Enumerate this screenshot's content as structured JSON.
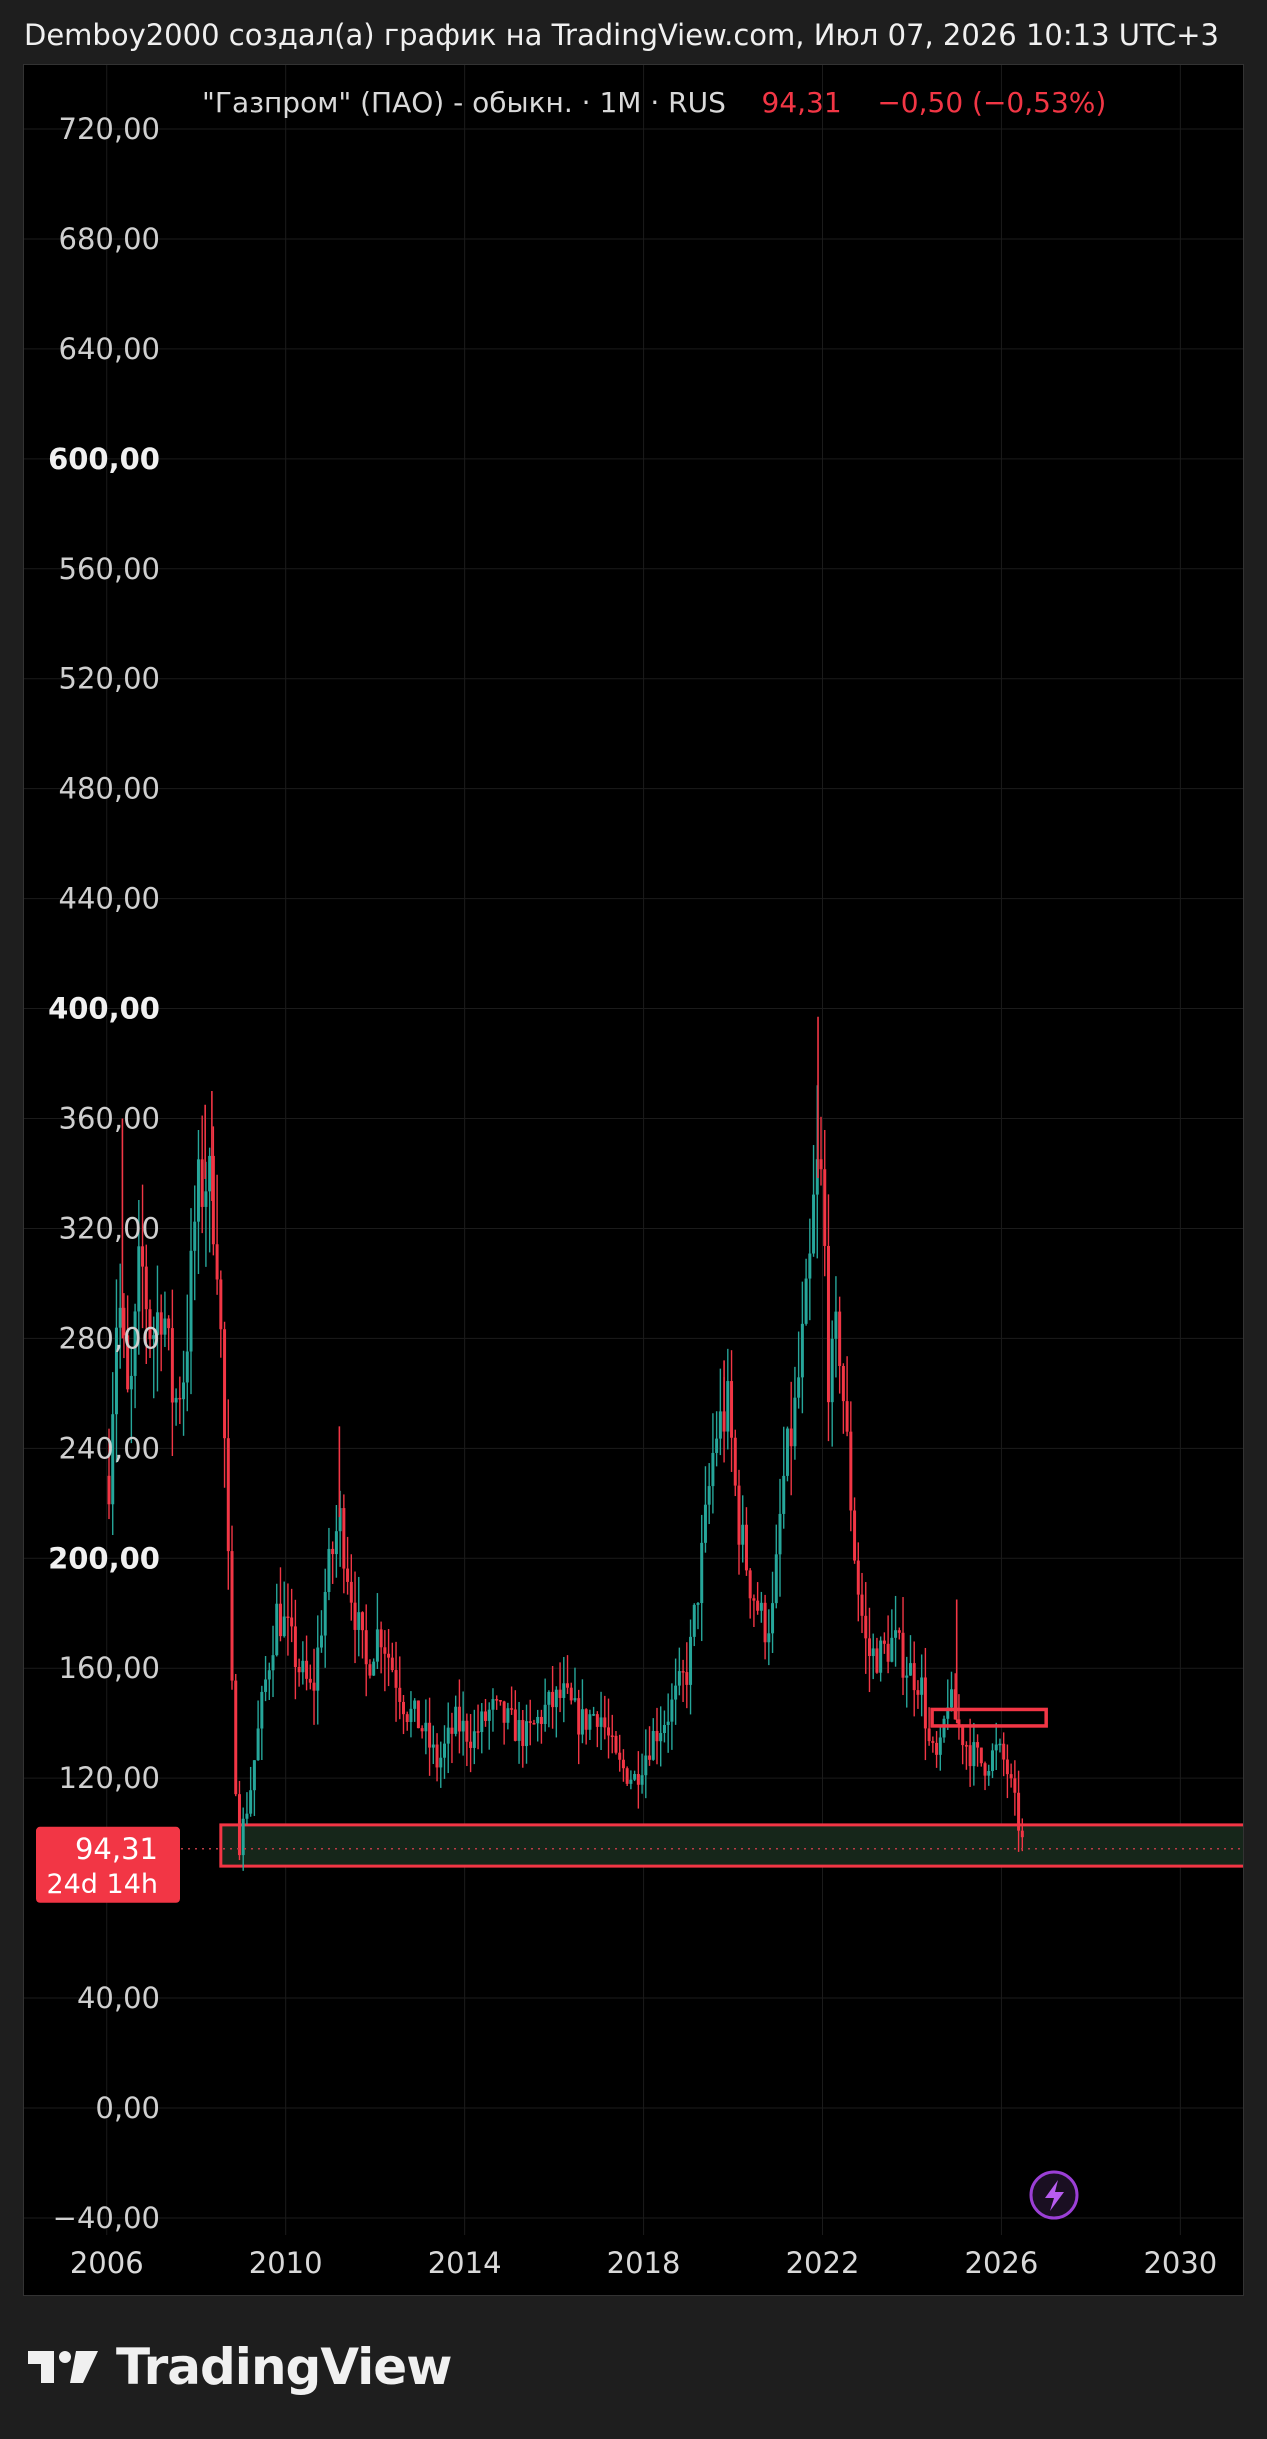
{
  "header": {
    "text": "Demboy2000 создал(а) график на TradingView.com, Июл 07, 2026 10:13 UTC+3"
  },
  "legend": {
    "symbol": "\"Газпром\" (ПАО) - обыкн.",
    "interval": "1M",
    "exchange": "RUS",
    "price": "94,31",
    "change": "−0,50 (−0,53%)"
  },
  "price_label": {
    "price": "94,31",
    "countdown": "24d 14h"
  },
  "footer": {
    "logo_text": "TradingView"
  },
  "colors": {
    "up": "#26a69a",
    "down": "#f23645",
    "box": "#f23645",
    "zone_fill": "#16261a",
    "background": "#000000"
  },
  "icons": {
    "lightning": "lightning-icon",
    "logo": "tradingview-logo-icon"
  },
  "chart_data": {
    "type": "candlestick",
    "interval": "1M",
    "y_ticks": [
      "720,00",
      "680,00",
      "640,00",
      "600,00",
      "560,00",
      "520,00",
      "480,00",
      "440,00",
      "400,00",
      "360,00",
      "320,00",
      "280,00",
      "240,00",
      "200,00",
      "160,00",
      "120,00",
      "40,00",
      "0,00",
      "−40,00"
    ],
    "y_tick_values": [
      720,
      680,
      640,
      600,
      560,
      520,
      480,
      440,
      400,
      360,
      320,
      280,
      240,
      200,
      160,
      120,
      40,
      0,
      -40
    ],
    "x_ticks": [
      "2006",
      "2010",
      "2014",
      "2018",
      "2022",
      "2026",
      "2030"
    ],
    "x_tick_values": [
      2006,
      2010,
      2014,
      2018,
      2022,
      2026,
      2030
    ],
    "xlim": [
      2004.15,
      2031.4
    ],
    "ylim": [
      -55,
      760
    ],
    "anchors": [
      {
        "t": 2006.05,
        "p": 230
      },
      {
        "t": 2006.25,
        "p": 300
      },
      {
        "t": 2006.5,
        "p": 250
      },
      {
        "t": 2006.75,
        "p": 310
      },
      {
        "t": 2007.0,
        "p": 280
      },
      {
        "t": 2007.25,
        "p": 295
      },
      {
        "t": 2007.5,
        "p": 255
      },
      {
        "t": 2007.75,
        "p": 270
      },
      {
        "t": 2008.0,
        "p": 330
      },
      {
        "t": 2008.25,
        "p": 340
      },
      {
        "t": 2008.45,
        "p": 320
      },
      {
        "t": 2008.6,
        "p": 260
      },
      {
        "t": 2008.8,
        "p": 150
      },
      {
        "t": 2008.95,
        "p": 95
      },
      {
        "t": 2009.2,
        "p": 115
      },
      {
        "t": 2009.5,
        "p": 150
      },
      {
        "t": 2009.8,
        "p": 180
      },
      {
        "t": 2010.0,
        "p": 175
      },
      {
        "t": 2010.3,
        "p": 160
      },
      {
        "t": 2010.6,
        "p": 150
      },
      {
        "t": 2010.9,
        "p": 190
      },
      {
        "t": 2011.2,
        "p": 215
      },
      {
        "t": 2011.5,
        "p": 185
      },
      {
        "t": 2011.8,
        "p": 160
      },
      {
        "t": 2012.1,
        "p": 175
      },
      {
        "t": 2012.4,
        "p": 160
      },
      {
        "t": 2012.7,
        "p": 145
      },
      {
        "t": 2013.0,
        "p": 140
      },
      {
        "t": 2013.4,
        "p": 125
      },
      {
        "t": 2013.8,
        "p": 140
      },
      {
        "t": 2014.2,
        "p": 135
      },
      {
        "t": 2014.6,
        "p": 145
      },
      {
        "t": 2015.0,
        "p": 140
      },
      {
        "t": 2015.4,
        "p": 135
      },
      {
        "t": 2015.8,
        "p": 145
      },
      {
        "t": 2016.2,
        "p": 150
      },
      {
        "t": 2016.6,
        "p": 140
      },
      {
        "t": 2017.0,
        "p": 145
      },
      {
        "t": 2017.4,
        "p": 125
      },
      {
        "t": 2017.8,
        "p": 120
      },
      {
        "t": 2018.2,
        "p": 135
      },
      {
        "t": 2018.6,
        "p": 145
      },
      {
        "t": 2019.0,
        "p": 160
      },
      {
        "t": 2019.3,
        "p": 200
      },
      {
        "t": 2019.6,
        "p": 245
      },
      {
        "t": 2019.9,
        "p": 255
      },
      {
        "t": 2020.1,
        "p": 215
      },
      {
        "t": 2020.4,
        "p": 190
      },
      {
        "t": 2020.7,
        "p": 175
      },
      {
        "t": 2020.9,
        "p": 180
      },
      {
        "t": 2021.1,
        "p": 225
      },
      {
        "t": 2021.4,
        "p": 255
      },
      {
        "t": 2021.7,
        "p": 300
      },
      {
        "t": 2021.85,
        "p": 340
      },
      {
        "t": 2022.0,
        "p": 335
      },
      {
        "t": 2022.15,
        "p": 260
      },
      {
        "t": 2022.35,
        "p": 285
      },
      {
        "t": 2022.55,
        "p": 240
      },
      {
        "t": 2022.75,
        "p": 195
      },
      {
        "t": 2023.0,
        "p": 165
      },
      {
        "t": 2023.3,
        "p": 165
      },
      {
        "t": 2023.6,
        "p": 170
      },
      {
        "t": 2023.9,
        "p": 160
      },
      {
        "t": 2024.2,
        "p": 155
      },
      {
        "t": 2024.4,
        "p": 130
      },
      {
        "t": 2024.6,
        "p": 125
      },
      {
        "t": 2024.8,
        "p": 150
      },
      {
        "t": 2025.0,
        "p": 140
      },
      {
        "t": 2025.3,
        "p": 130
      },
      {
        "t": 2025.6,
        "p": 125
      },
      {
        "t": 2025.9,
        "p": 130
      },
      {
        "t": 2026.1,
        "p": 125
      },
      {
        "t": 2026.3,
        "p": 110
      },
      {
        "t": 2026.5,
        "p": 94
      }
    ],
    "spikes": [
      {
        "t": 2006.35,
        "h": 360
      },
      {
        "t": 2008.2,
        "h": 365
      },
      {
        "t": 2008.35,
        "h": 370
      },
      {
        "t": 2021.9,
        "h": 397
      },
      {
        "t": 2019.8,
        "h": 272
      },
      {
        "t": 2011.2,
        "h": 248
      },
      {
        "t": 2025.0,
        "h": 185
      }
    ],
    "last_price": 94.31,
    "zone": {
      "t0": 2008.55,
      "t1": 2031.4,
      "p_high": 103,
      "p_low": 88
    },
    "box": {
      "t0": 2024.45,
      "t1": 2027.0,
      "p_high": 145,
      "p_low": 139
    }
  }
}
